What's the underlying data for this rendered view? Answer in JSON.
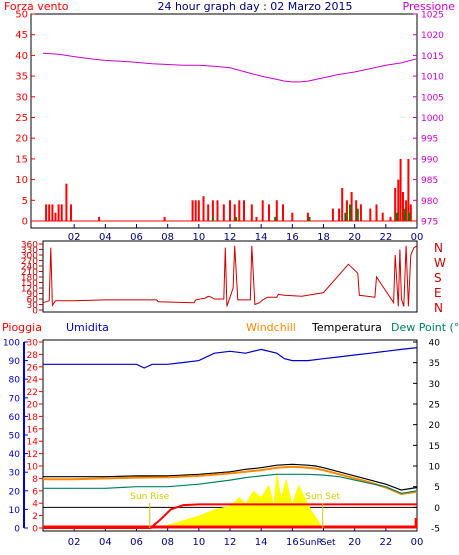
{
  "title": "24 hour graph day : 02 Marzo 2015",
  "colors": {
    "wind": "#ff0000",
    "gust": "#008000",
    "pressure": "#cc00cc",
    "direction": "#cc0000",
    "humidity": "#0000cc",
    "windchill": "#ff8800",
    "temperature": "#000000",
    "dewpoint": "#008066",
    "rain": "#ff0000",
    "rain_rate": "#ffff00",
    "tick_label": "#000080",
    "solar": "#cccc00",
    "sun_text": "#cccc00"
  },
  "chart_data": [
    {
      "type": "bar",
      "title": "24 hour graph day : 02 Marzo 2015",
      "left_label": "Forza vento",
      "right_label": "Pressione",
      "x_ticks": [
        "02",
        "04",
        "06",
        "08",
        "10",
        "12",
        "14",
        "16",
        "18",
        "20",
        "22",
        "00"
      ],
      "y_left_ticks": [
        "0",
        "5",
        "10",
        "15",
        "20",
        "25",
        "30",
        "35",
        "40",
        "45",
        "50"
      ],
      "y_left_range": [
        0,
        50
      ],
      "y_right_ticks": [
        "975",
        "980",
        "985",
        "990",
        "995",
        "1000",
        "1005",
        "1010",
        "1015",
        "1020",
        "1025"
      ],
      "y_right_range": [
        975,
        1025
      ],
      "x_range_hours": [
        0,
        24
      ],
      "grid": false,
      "series": [
        {
          "kind": "line",
          "color_key": "pressure",
          "x": [
            0,
            1,
            2,
            3,
            4,
            5,
            6,
            7,
            8,
            9,
            10,
            11,
            12,
            13,
            14,
            15,
            15.5,
            16,
            16.5,
            17,
            18,
            19,
            20,
            21,
            22,
            23,
            24
          ],
          "y": [
            1015.5,
            1015.3,
            1014.7,
            1014.2,
            1013.8,
            1013.6,
            1013.3,
            1013,
            1012.8,
            1012.6,
            1012.6,
            1012.4,
            1012,
            1011,
            1010,
            1009.2,
            1008.8,
            1008.6,
            1008.6,
            1008.8,
            1009.6,
            1010.4,
            1011,
            1011.8,
            1012.6,
            1013.2,
            1014.2
          ]
        },
        {
          "kind": "bars",
          "color_key": "wind",
          "x": [
            0.2,
            0.4,
            0.6,
            0.8,
            1.0,
            1.2,
            1.5,
            1.8,
            3.6,
            7.8,
            9.6,
            9.8,
            10.0,
            10.3,
            10.6,
            10.9,
            11.2,
            11.6,
            12.0,
            12.3,
            12.6,
            12.9,
            13.4,
            13.7,
            14.1,
            14.5,
            15.0,
            15.4,
            16.0,
            17.0,
            17.1,
            18.6,
            19.0,
            19.2,
            19.5,
            19.8,
            20.1,
            20.4,
            21.0,
            21.4,
            21.8,
            22.3,
            22.6,
            22.8,
            22.95,
            23.1,
            23.3,
            23.45,
            23.6
          ],
          "y": [
            4,
            4,
            4,
            2,
            4,
            4,
            9,
            4,
            1,
            1,
            5,
            5,
            5,
            6,
            4,
            5,
            5,
            4,
            5,
            4,
            5,
            5,
            4,
            1,
            5,
            4,
            5,
            4,
            2,
            2,
            1,
            3,
            3,
            8,
            5,
            7,
            5,
            4,
            3,
            4,
            2,
            1,
            8,
            10,
            15,
            7,
            5,
            15,
            4
          ]
        },
        {
          "kind": "bars",
          "color_key": "gust",
          "x": [
            10.9,
            12.4,
            14.9,
            17.1,
            19.4,
            19.7,
            20.2,
            22.7,
            23.2,
            23.5
          ],
          "y": [
            1,
            1,
            1,
            1,
            2,
            4,
            3,
            2,
            3,
            2
          ]
        }
      ]
    },
    {
      "type": "line",
      "left_ticks": [
        "0",
        "30",
        "60",
        "90",
        "120",
        "150",
        "180",
        "210",
        "240",
        "270",
        "300",
        "330",
        "360"
      ],
      "y_range": [
        0,
        360
      ],
      "right_labels": [
        "N",
        "W",
        "S",
        "E",
        "N"
      ],
      "x_range_hours": [
        0,
        24
      ],
      "series": [
        {
          "color_key": "direction",
          "x": [
            0,
            0.4,
            0.5,
            0.6,
            0.8,
            2,
            4,
            7.3,
            7.4,
            9.7,
            9.8,
            10.4,
            10.6,
            10.8,
            11,
            11.6,
            11.7,
            11.8,
            12,
            12.2,
            12.3,
            12.5,
            13.3,
            13.4,
            13.6,
            13.9,
            14.1,
            14.4,
            15,
            15.1,
            15.5,
            16.6,
            18,
            19.4,
            19.6,
            20.2,
            20.3,
            21.3,
            21.4,
            22.5,
            22.6,
            22.8,
            22.9,
            23,
            23.15,
            23.3,
            23.45,
            23.6,
            23.8,
            24
          ],
          "y": [
            40,
            50,
            340,
            25,
            50,
            50,
            55,
            55,
            45,
            40,
            55,
            65,
            75,
            70,
            60,
            60,
            340,
            20,
            70,
            120,
            350,
            55,
            55,
            350,
            30,
            40,
            55,
            70,
            70,
            85,
            80,
            75,
            95,
            230,
            250,
            200,
            80,
            70,
            180,
            40,
            300,
            20,
            330,
            60,
            20,
            350,
            20,
            300,
            340,
            350
          ]
        }
      ]
    },
    {
      "type": "line",
      "left_labels": [
        "Pioggia",
        "Umidita"
      ],
      "series_labels": [
        "Windchill",
        "Temperatura",
        "Dew Point (°C"
      ],
      "humidity_ticks": [
        "0",
        "10",
        "20",
        "30",
        "40",
        "50",
        "60",
        "70",
        "80",
        "90",
        "100"
      ],
      "rain_ticks": [
        "0",
        "2",
        "4",
        "6",
        "8",
        "10",
        "12",
        "14",
        "16",
        "18",
        "20",
        "22",
        "24",
        "26",
        "28",
        "30"
      ],
      "temp_ticks": [
        "-5",
        "0",
        "5",
        "10",
        "15",
        "20",
        "25",
        "30",
        "35",
        "40"
      ],
      "temp_range": [
        -5,
        40
      ],
      "humidity_range": [
        0,
        100
      ],
      "rain_range": [
        0,
        30
      ],
      "x_ticks": [
        "02",
        "04",
        "06",
        "08",
        "10",
        "12",
        "14",
        "16",
        "18",
        "20",
        "22",
        "00"
      ],
      "sun_rise": {
        "label": "Sun Rise",
        "hour": 6.85
      },
      "sun_set": {
        "label": "Sun Set",
        "hour": 17.95
      },
      "sun_rise_tick": "SunR",
      "sun_set_tick": "Set",
      "x_range_hours": [
        0,
        24
      ],
      "series": [
        {
          "name": "Umidita",
          "color_key": "humidity",
          "axis": "humidity",
          "x": [
            0,
            1,
            2,
            4,
            6,
            6.5,
            7,
            8,
            9,
            10,
            11,
            12,
            13,
            14,
            15,
            15.5,
            16,
            17,
            18,
            19,
            20,
            21,
            22,
            23,
            24
          ],
          "y": [
            88,
            88,
            88,
            88,
            88,
            86,
            88,
            88,
            89,
            90,
            94,
            95,
            94,
            96,
            94,
            91,
            90,
            90,
            91,
            92,
            93,
            94,
            95,
            96,
            97
          ]
        },
        {
          "name": "Temperatura",
          "color_key": "temperature",
          "axis": "temp",
          "x": [
            0,
            2,
            4,
            6,
            8,
            10,
            12,
            13,
            14,
            15,
            16,
            17,
            17.5,
            18,
            19,
            20,
            21,
            22,
            23,
            24
          ],
          "y": [
            7.4,
            7.4,
            7.4,
            7.6,
            7.6,
            8,
            8.6,
            9.2,
            9.6,
            10.2,
            10.4,
            10.2,
            10,
            9.6,
            8.6,
            7.6,
            6.6,
            5.6,
            4.2,
            4.8
          ]
        },
        {
          "name": "Windchill",
          "color_key": "windchill",
          "axis": "temp",
          "x": [
            0,
            2,
            4,
            6,
            8,
            10,
            12,
            13,
            14,
            15,
            16,
            17,
            17.5,
            18,
            19,
            20,
            21,
            22,
            23,
            24
          ],
          "y": [
            6.8,
            6.8,
            7,
            7.2,
            7.3,
            7.6,
            8.2,
            8.6,
            9,
            9.6,
            9.8,
            9.6,
            9.4,
            9,
            8,
            7,
            6,
            4.8,
            3.2,
            3.8
          ]
        },
        {
          "name": "Dew Point",
          "color_key": "dewpoint",
          "axis": "temp",
          "x": [
            0,
            2,
            4,
            6,
            8,
            10,
            12,
            13,
            14,
            15,
            16,
            17,
            18,
            19,
            20,
            21,
            22,
            23,
            24
          ],
          "y": [
            4.6,
            4.6,
            4.6,
            5,
            5,
            5.6,
            6.6,
            7.2,
            7.6,
            8,
            8,
            8,
            7.8,
            7.4,
            6.6,
            5.8,
            5,
            3.4,
            4
          ]
        }
      ],
      "rain_total": {
        "x": [
          0,
          24
        ],
        "y": [
          0,
          0
        ]
      },
      "rain_rate_area": {
        "x": [
          0,
          6.9,
          7.6,
          8.2,
          9,
          10,
          11,
          12,
          13,
          14,
          15,
          16,
          17,
          18,
          24
        ],
        "y": [
          0,
          0,
          1.5,
          3,
          3.7,
          3.8,
          3.8,
          3.8,
          3.8,
          3.8,
          3.8,
          3.8,
          3.8,
          3.8,
          3.8
        ]
      },
      "solar": {
        "x": [
          6.9,
          8,
          10,
          11,
          12,
          12.6,
          13,
          13.5,
          14,
          14.5,
          14.8,
          15,
          15.3,
          15.6,
          16,
          16.4,
          16.8,
          17.2,
          17.6,
          17.95
        ],
        "y": [
          0,
          0.5,
          2,
          3,
          3.6,
          5,
          4,
          6,
          5,
          7,
          4,
          9,
          5,
          8,
          4,
          7,
          5,
          3,
          1.5,
          0
        ]
      }
    }
  ]
}
